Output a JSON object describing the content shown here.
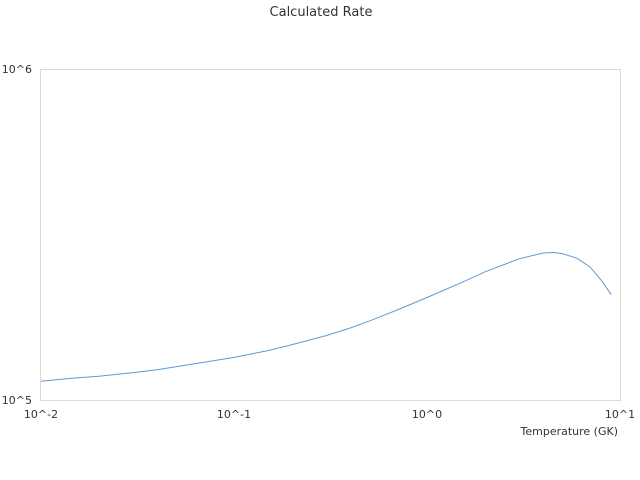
{
  "chart_data": {
    "type": "line",
    "title": "Calculated Rate",
    "xlabel": "Temperature (GK)",
    "ylabel": "",
    "x_scale": "log",
    "y_scale": "log",
    "xlim": [
      0.01,
      10
    ],
    "ylim": [
      100000,
      1000000
    ],
    "x_ticks": [
      {
        "value": 0.01,
        "label": "10^-2"
      },
      {
        "value": 0.1,
        "label": "10^-1"
      },
      {
        "value": 1,
        "label": "10^0"
      },
      {
        "value": 10,
        "label": "10^1"
      }
    ],
    "y_ticks": [
      {
        "value": 100000,
        "label": "10^5"
      },
      {
        "value": 1000000,
        "label": "10^6"
      }
    ],
    "grid": false,
    "legend": "none",
    "series": [
      {
        "color": "#5b9bd5",
        "x": [
          0.01,
          0.015,
          0.02,
          0.03,
          0.04,
          0.05,
          0.07,
          0.1,
          0.15,
          0.2,
          0.3,
          0.4,
          0.5,
          0.7,
          1.0,
          1.5,
          2.0,
          3.0,
          4.0,
          4.5,
          5.0,
          6.0,
          7.0,
          8.0,
          9.0
        ],
        "y": [
          114000,
          116500,
          118000,
          121000,
          123500,
          126000,
          130000,
          134500,
          141000,
          147000,
          156500,
          165000,
          173000,
          187000,
          204000,
          226000,
          244000,
          267000,
          278000,
          279000,
          277000,
          268000,
          252000,
          230000,
          208000
        ]
      }
    ]
  }
}
